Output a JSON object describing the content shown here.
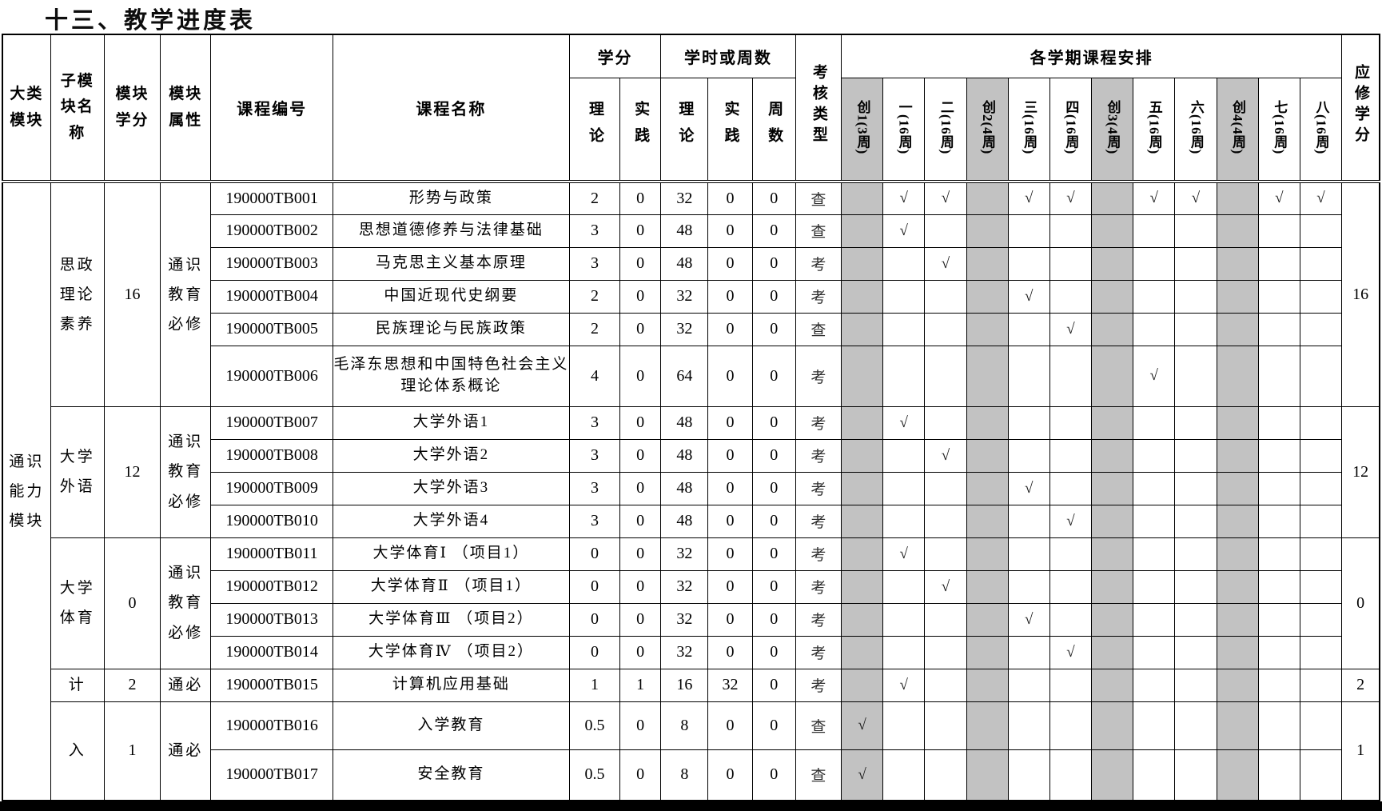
{
  "title": "十三、教学进度表",
  "table": {
    "major_module": "通识\n能力\n模块",
    "headers": {
      "major_module": "大类\n模块",
      "sub_module": "子模\n块名\n称",
      "module_credits": "模块\n学分",
      "module_attr": "模块\n属性",
      "course_code": "课程编号",
      "course_name": "课程名称",
      "credits_group": "学分",
      "hours_group": "学时或周数",
      "credit_theory": "理论",
      "credit_practice": "实践",
      "hour_theory": "理论",
      "hour_practice": "实践",
      "weeks": "周数",
      "assessment_type": "考核类型",
      "semester_group": "各学期课程安排",
      "required_credits": "应修学分",
      "check_mark": "√"
    },
    "semesters": [
      {
        "label": "创1(3周)",
        "shaded": true
      },
      {
        "label": "一(16周)",
        "shaded": false
      },
      {
        "label": "二(16周)",
        "shaded": false
      },
      {
        "label": "创2(4周)",
        "shaded": true
      },
      {
        "label": "三(16周)",
        "shaded": false
      },
      {
        "label": "四(16周)",
        "shaded": false
      },
      {
        "label": "创3(4周)",
        "shaded": true
      },
      {
        "label": "五(16周)",
        "shaded": false
      },
      {
        "label": "六(16周)",
        "shaded": false
      },
      {
        "label": "创4(4周)",
        "shaded": true
      },
      {
        "label": "七(16周)",
        "shaded": false
      },
      {
        "label": "八(16周)",
        "shaded": false
      }
    ],
    "groups": [
      {
        "sub_module": "思政\n理论\n素养",
        "module_credits": "16",
        "module_attr": "通识\n教育\n必修",
        "required_credits": "16",
        "rows": [
          {
            "code": "190000TB001",
            "name": "形势与政策",
            "credit_theory": "2",
            "credit_practice": "0",
            "hours_theory": "32",
            "hours_practice": "0",
            "weeks": "0",
            "assessment": "查",
            "semesters": [
              "",
              "√",
              "√",
              "",
              "√",
              "√",
              "",
              "√",
              "√",
              "",
              "√",
              "√"
            ]
          },
          {
            "code": "190000TB002",
            "name": "思想道德修养与法律基础",
            "credit_theory": "3",
            "credit_practice": "0",
            "hours_theory": "48",
            "hours_practice": "0",
            "weeks": "0",
            "assessment": "查",
            "semesters": [
              "",
              "√",
              "",
              "",
              "",
              "",
              "",
              "",
              "",
              "",
              "",
              ""
            ]
          },
          {
            "code": "190000TB003",
            "name": "马克思主义基本原理",
            "credit_theory": "3",
            "credit_practice": "0",
            "hours_theory": "48",
            "hours_practice": "0",
            "weeks": "0",
            "assessment": "考",
            "semesters": [
              "",
              "",
              "√",
              "",
              "",
              "",
              "",
              "",
              "",
              "",
              "",
              ""
            ]
          },
          {
            "code": "190000TB004",
            "name": "中国近现代史纲要",
            "credit_theory": "2",
            "credit_practice": "0",
            "hours_theory": "32",
            "hours_practice": "0",
            "weeks": "0",
            "assessment": "考",
            "semesters": [
              "",
              "",
              "",
              "",
              "√",
              "",
              "",
              "",
              "",
              "",
              "",
              ""
            ]
          },
          {
            "code": "190000TB005",
            "name": "民族理论与民族政策",
            "credit_theory": "2",
            "credit_practice": "0",
            "hours_theory": "32",
            "hours_practice": "0",
            "weeks": "0",
            "assessment": "查",
            "semesters": [
              "",
              "",
              "",
              "",
              "",
              "√",
              "",
              "",
              "",
              "",
              "",
              ""
            ]
          },
          {
            "code": "190000TB006",
            "name": "毛泽东思想和中国特色社会主义理论体系概论",
            "credit_theory": "4",
            "credit_practice": "0",
            "hours_theory": "64",
            "hours_practice": "0",
            "weeks": "0",
            "assessment": "考",
            "semesters": [
              "",
              "",
              "",
              "",
              "",
              "",
              "",
              "√",
              "",
              "",
              "",
              ""
            ]
          }
        ]
      },
      {
        "sub_module": "大学\n外语",
        "module_credits": "12",
        "module_attr": "通识\n教育\n必修",
        "required_credits": "12",
        "rows": [
          {
            "code": "190000TB007",
            "name": "大学外语1",
            "credit_theory": "3",
            "credit_practice": "0",
            "hours_theory": "48",
            "hours_practice": "0",
            "weeks": "0",
            "assessment": "考",
            "semesters": [
              "",
              "√",
              "",
              "",
              "",
              "",
              "",
              "",
              "",
              "",
              "",
              ""
            ]
          },
          {
            "code": "190000TB008",
            "name": "大学外语2",
            "credit_theory": "3",
            "credit_practice": "0",
            "hours_theory": "48",
            "hours_practice": "0",
            "weeks": "0",
            "assessment": "考",
            "semesters": [
              "",
              "",
              "√",
              "",
              "",
              "",
              "",
              "",
              "",
              "",
              "",
              ""
            ]
          },
          {
            "code": "190000TB009",
            "name": "大学外语3",
            "credit_theory": "3",
            "credit_practice": "0",
            "hours_theory": "48",
            "hours_practice": "0",
            "weeks": "0",
            "assessment": "考",
            "semesters": [
              "",
              "",
              "",
              "",
              "√",
              "",
              "",
              "",
              "",
              "",
              "",
              ""
            ]
          },
          {
            "code": "190000TB010",
            "name": "大学外语4",
            "credit_theory": "3",
            "credit_practice": "0",
            "hours_theory": "48",
            "hours_practice": "0",
            "weeks": "0",
            "assessment": "考",
            "semesters": [
              "",
              "",
              "",
              "",
              "",
              "√",
              "",
              "",
              "",
              "",
              "",
              ""
            ]
          }
        ]
      },
      {
        "sub_module": "大学\n体育",
        "module_credits": "0",
        "module_attr": "通识\n教育\n必修",
        "required_credits": "0",
        "rows": [
          {
            "code": "190000TB011",
            "name": "大学体育Ⅰ （项目1）",
            "credit_theory": "0",
            "credit_practice": "0",
            "hours_theory": "32",
            "hours_practice": "0",
            "weeks": "0",
            "assessment": "考",
            "semesters": [
              "",
              "√",
              "",
              "",
              "",
              "",
              "",
              "",
              "",
              "",
              "",
              ""
            ]
          },
          {
            "code": "190000TB012",
            "name": "大学体育Ⅱ （项目1）",
            "credit_theory": "0",
            "credit_practice": "0",
            "hours_theory": "32",
            "hours_practice": "0",
            "weeks": "0",
            "assessment": "考",
            "semesters": [
              "",
              "",
              "√",
              "",
              "",
              "",
              "",
              "",
              "",
              "",
              "",
              ""
            ]
          },
          {
            "code": "190000TB013",
            "name": "大学体育Ⅲ （项目2）",
            "credit_theory": "0",
            "credit_practice": "0",
            "hours_theory": "32",
            "hours_practice": "0",
            "weeks": "0",
            "assessment": "考",
            "semesters": [
              "",
              "",
              "",
              "",
              "√",
              "",
              "",
              "",
              "",
              "",
              "",
              ""
            ]
          },
          {
            "code": "190000TB014",
            "name": "大学体育Ⅳ （项目2）",
            "credit_theory": "0",
            "credit_practice": "0",
            "hours_theory": "32",
            "hours_practice": "0",
            "weeks": "0",
            "assessment": "考",
            "semesters": [
              "",
              "",
              "",
              "",
              "",
              "√",
              "",
              "",
              "",
              "",
              "",
              ""
            ]
          }
        ]
      },
      {
        "sub_module": "计",
        "module_credits": "2",
        "module_attr": "通必",
        "required_credits": "2",
        "rows": [
          {
            "code": "190000TB015",
            "name": "计算机应用基础",
            "credit_theory": "1",
            "credit_practice": "1",
            "hours_theory": "16",
            "hours_practice": "32",
            "weeks": "0",
            "assessment": "考",
            "semesters": [
              "",
              "√",
              "",
              "",
              "",
              "",
              "",
              "",
              "",
              "",
              "",
              ""
            ]
          }
        ]
      },
      {
        "sub_module": "入",
        "module_credits": "1",
        "module_attr": "通必",
        "required_credits": "1",
        "rows": [
          {
            "code": "190000TB016",
            "name": "入学教育",
            "credit_theory": "0.5",
            "credit_practice": "0",
            "hours_theory": "8",
            "hours_practice": "0",
            "weeks": "0",
            "assessment": "查",
            "semesters": [
              "√",
              "",
              "",
              "",
              "",
              "",
              "",
              "",
              "",
              "",
              "",
              ""
            ]
          },
          {
            "code": "190000TB017",
            "name": "安全教育",
            "credit_theory": "0.5",
            "credit_practice": "0",
            "hours_theory": "8",
            "hours_practice": "0",
            "weeks": "0",
            "assessment": "查",
            "semesters": [
              "√",
              "",
              "",
              "",
              "",
              "",
              "",
              "",
              "",
              "",
              "",
              ""
            ]
          }
        ]
      }
    ]
  }
}
